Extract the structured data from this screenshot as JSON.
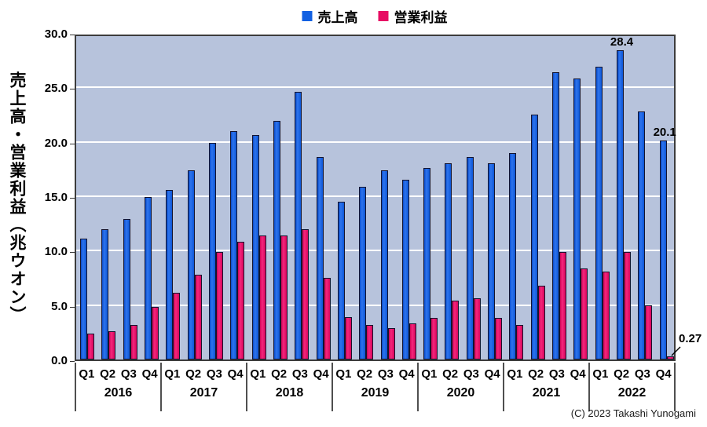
{
  "legend": {
    "items": [
      {
        "label": "売上高",
        "color": "#1160e2"
      },
      {
        "label": "営業利益",
        "color": "#e70d63"
      }
    ]
  },
  "y_axis": {
    "title": "売上高・営業利益（兆ウオン）",
    "ticks": [
      "30.0",
      "25.0",
      "20.0",
      "15.0",
      "10.0",
      "5.0",
      "0.0"
    ]
  },
  "x_axis": {
    "years": [
      "2016",
      "2017",
      "2018",
      "2019",
      "2020",
      "2021",
      "2022"
    ],
    "quarters": [
      "Q1",
      "Q2",
      "Q3",
      "Q4"
    ]
  },
  "footer": {
    "copyright": "(C) 2023 Takashi Yunogami"
  },
  "colors": {
    "plot_bg": "#b7c3dc",
    "gridline": "#ffffff",
    "plot_border": "#3c3c3c",
    "bar_blue": "#1160e2",
    "bar_pink": "#e70d63"
  },
  "chart_data": {
    "type": "bar",
    "title": "",
    "xlabel": "",
    "ylabel": "売上高・営業利益（兆ウオン）",
    "ylim": [
      0,
      30
    ],
    "ytick_step": 5,
    "grid": true,
    "legend_position": "top-center",
    "categories": [
      "2016 Q1",
      "2016 Q2",
      "2016 Q3",
      "2016 Q4",
      "2017 Q1",
      "2017 Q2",
      "2017 Q3",
      "2017 Q4",
      "2018 Q1",
      "2018 Q2",
      "2018 Q3",
      "2018 Q4",
      "2019 Q1",
      "2019 Q2",
      "2019 Q3",
      "2019 Q4",
      "2020 Q1",
      "2020 Q2",
      "2020 Q3",
      "2020 Q4",
      "2021 Q1",
      "2021 Q2",
      "2021 Q3",
      "2021 Q4",
      "2022 Q1",
      "2022 Q2",
      "2022 Q3",
      "2022 Q4"
    ],
    "series": [
      {
        "name": "売上高",
        "color": "#1160e2",
        "values": [
          11.1,
          12.0,
          12.9,
          14.9,
          15.6,
          17.4,
          19.9,
          21.0,
          20.6,
          21.9,
          24.6,
          18.6,
          14.5,
          15.9,
          17.4,
          16.5,
          17.6,
          18.0,
          18.6,
          18.0,
          19.0,
          22.5,
          26.4,
          25.8,
          26.9,
          28.4,
          22.8,
          20.1
        ]
      },
      {
        "name": "営業利益",
        "color": "#e70d63",
        "values": [
          2.4,
          2.6,
          3.2,
          4.8,
          6.1,
          7.8,
          9.9,
          10.8,
          11.4,
          11.4,
          12.0,
          7.5,
          3.9,
          3.2,
          2.9,
          3.3,
          3.8,
          5.4,
          5.6,
          3.8,
          3.2,
          6.8,
          9.9,
          8.4,
          8.1,
          9.9,
          5.0,
          0.27
        ]
      }
    ],
    "annotations": [
      {
        "text": "28.4",
        "series": 0,
        "index": 25,
        "placement": "above"
      },
      {
        "text": "20.1",
        "series": 0,
        "index": 27,
        "placement": "above"
      },
      {
        "text": "0.27",
        "series": 1,
        "index": 27,
        "placement": "right-outside"
      }
    ]
  }
}
